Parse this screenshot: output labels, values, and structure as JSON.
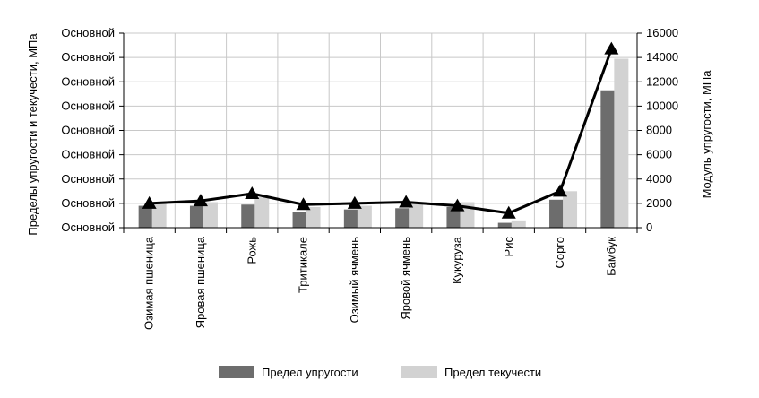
{
  "chart_data": {
    "type": "bar",
    "categories": [
      "Озимая пшеница",
      "Яровая пшеница",
      "Рожь",
      "Тритикале",
      "Озимый ячмень",
      "Яровой ячмень",
      "Кукуруза",
      "Рис",
      "Сорго",
      "Бамбук"
    ],
    "series": [
      {
        "name": "Предел упругости",
        "kind": "bar",
        "axis": "left",
        "color": "#6d6d6d",
        "values": [
          1.8,
          1.8,
          1.9,
          1.3,
          1.5,
          1.6,
          1.7,
          0.4,
          2.3,
          11.3
        ]
      },
      {
        "name": "Предел текучести",
        "kind": "bar",
        "axis": "left",
        "color": "#d2d2d2",
        "values": [
          2.1,
          2.1,
          2.5,
          1.7,
          1.8,
          2.1,
          2.1,
          0.6,
          3.0,
          13.9
        ]
      },
      {
        "kind": "line",
        "axis": "right",
        "color": "#000000",
        "marker": "triangle",
        "values": [
          2000,
          2200,
          2800,
          1900,
          2000,
          2100,
          1800,
          1200,
          3000,
          14700
        ]
      }
    ],
    "left_axis": {
      "label": "Пределы упругости и текучести, МПа",
      "ticks": [
        0,
        2,
        4,
        6,
        8,
        10,
        12,
        14,
        16
      ],
      "tick_labels": [
        "Основной",
        "Основной",
        "Основной",
        "Основной",
        "Основной",
        "Основной",
        "Основной",
        "Основной",
        "Основной"
      ],
      "range": [
        0,
        16
      ]
    },
    "right_axis": {
      "label": "Модуль упругости, МПа",
      "ticks": [
        0,
        2000,
        4000,
        6000,
        8000,
        10000,
        12000,
        14000,
        16000
      ],
      "tick_labels": [
        "0",
        "2000",
        "4000",
        "6000",
        "8000",
        "10000",
        "12000",
        "14000",
        "16000"
      ],
      "range": [
        0,
        16000
      ]
    },
    "grid": true,
    "legend": {
      "position": "bottom",
      "entries": [
        "Предел упругости",
        "Предел текучести"
      ]
    }
  }
}
